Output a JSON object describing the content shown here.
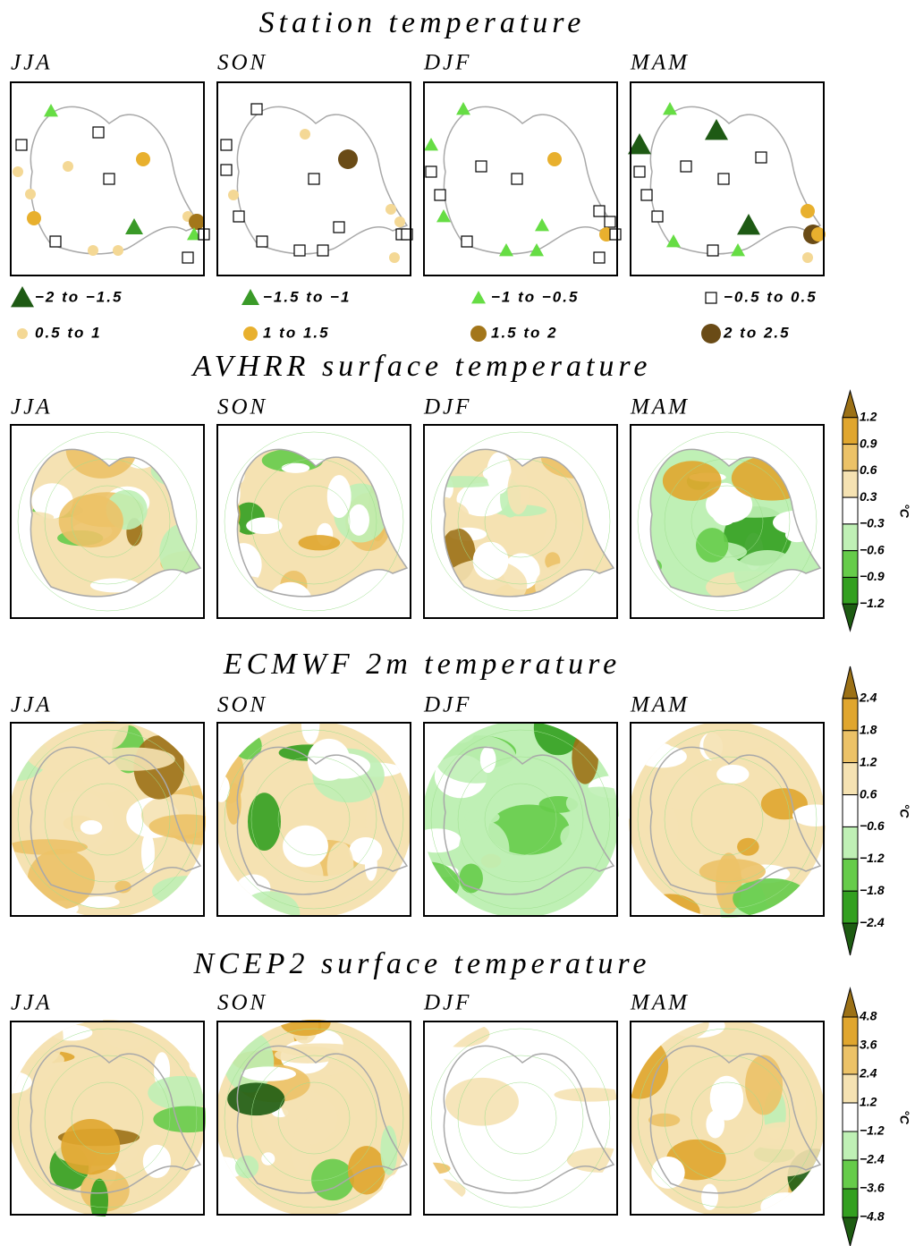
{
  "rows": [
    {
      "title": "Station temperature",
      "seasons": [
        "JJA",
        "SON",
        "DJF",
        "MAM"
      ]
    },
    {
      "title": "AVHRR surface temperature",
      "seasons": [
        "JJA",
        "SON",
        "DJF",
        "MAM"
      ],
      "colorbar": {
        "unit": "°C",
        "labels": [
          "1.2",
          "0.9",
          "0.6",
          "0.3",
          "−0.3",
          "−0.6",
          "−0.9",
          "−1.2"
        ]
      }
    },
    {
      "title": "ECMWF 2m temperature",
      "seasons": [
        "JJA",
        "SON",
        "DJF",
        "MAM"
      ],
      "colorbar": {
        "unit": "°C",
        "labels": [
          "2.4",
          "1.8",
          "1.2",
          "0.6",
          "−0.6",
          "−1.2",
          "−1.8",
          "−2.4"
        ]
      }
    },
    {
      "title": "NCEP2 surface temperature",
      "seasons": [
        "JJA",
        "SON",
        "DJF",
        "MAM"
      ],
      "colorbar": {
        "unit": "°C",
        "labels": [
          "4.8",
          "3.6",
          "2.4",
          "1.2",
          "−1.2",
          "−2.4",
          "−3.6",
          "−4.8"
        ]
      }
    }
  ],
  "legend": [
    "−2 to −1.5",
    "−1.5 to −1",
    "−1 to −0.5",
    "−0.5 to 0.5",
    "0.5 to 1",
    "1 to 1.5",
    "1.5 to 2",
    "2 to 2.5"
  ]
}
